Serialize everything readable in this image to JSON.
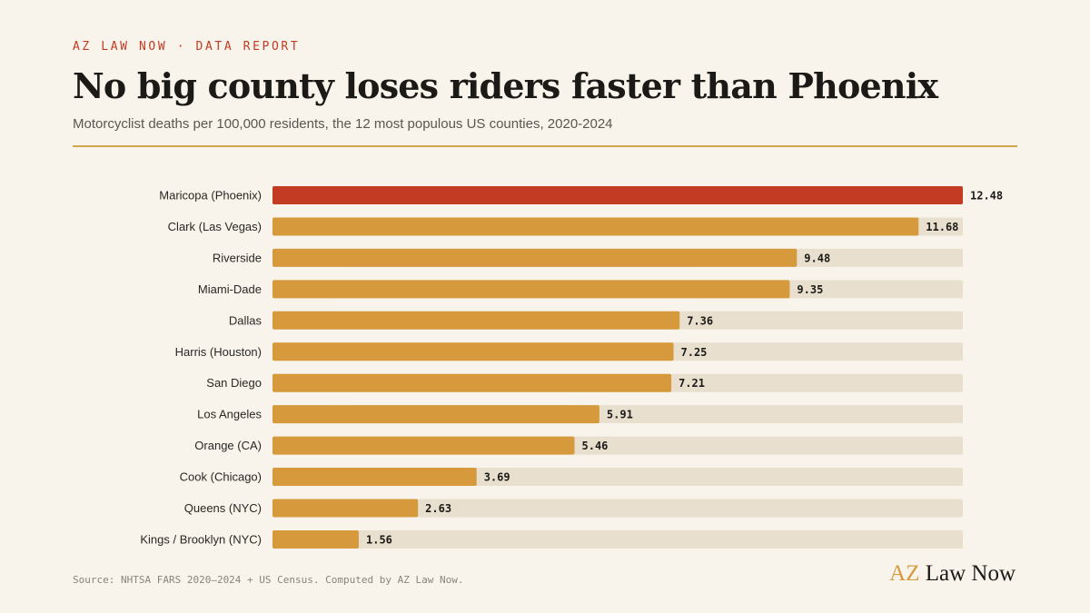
{
  "header": {
    "kicker": "AZ LAW NOW · DATA REPORT",
    "title": "No big county loses riders faster than Phoenix",
    "subtitle": "Motorcyclist deaths per 100,000 residents, the 12 most populous US counties, 2020-2024"
  },
  "footer": {
    "source": "Source: NHTSA FARS 2020–2024 + US Census. Computed by AZ Law Now.",
    "brand_accent": "AZ",
    "brand_rest": "Law Now"
  },
  "colors": {
    "highlight": "#c23b22",
    "bar": "#d69a3c",
    "track": "#e8dfcf",
    "rule": "#d2a84d",
    "background": "#f8f4ec"
  },
  "chart_data": {
    "type": "bar",
    "orientation": "horizontal",
    "categories": [
      "Maricopa (Phoenix)",
      "Clark (Las Vegas)",
      "Riverside",
      "Miami-Dade",
      "Dallas",
      "Harris (Houston)",
      "San Diego",
      "Los Angeles",
      "Orange (CA)",
      "Cook (Chicago)",
      "Queens (NYC)",
      "Kings / Brooklyn (NYC)"
    ],
    "values": [
      12.48,
      11.68,
      9.48,
      9.35,
      7.36,
      7.25,
      7.21,
      5.91,
      5.46,
      3.69,
      2.63,
      1.56
    ],
    "value_labels": [
      "12.48",
      "11.68",
      "9.48",
      "9.35",
      "7.36",
      "7.25",
      "7.21",
      "5.91",
      "5.46",
      "3.69",
      "2.63",
      "1.56"
    ],
    "highlight_index": 0,
    "xlim": [
      0,
      12.48
    ],
    "grid": false,
    "legend": "none"
  }
}
